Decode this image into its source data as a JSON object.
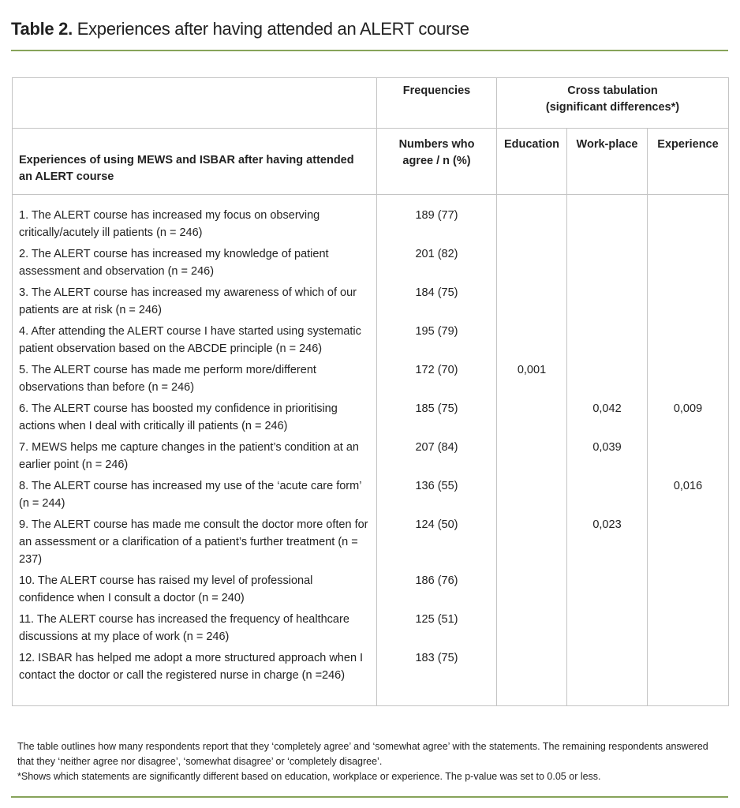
{
  "title": {
    "bold": "Table 2.",
    "text": " Experiences after having attended an ALERT course"
  },
  "header": {
    "frequencies": "Frequencies",
    "cross_tabulation": "Cross tabulation (significant differences*)",
    "statement_col": "Experiences of using MEWS and ISBAR after having attended an ALERT course",
    "numbers_col": "Numbers who agree / n (%)",
    "education": "Education",
    "workplace": "Work-place",
    "experience": "Experience"
  },
  "rows": [
    {
      "statement": "1. The ALERT course has increased my focus on observing critically/acutely ill patients (n = 246)",
      "freq": "189 (77)",
      "education": "",
      "workplace": "",
      "experience": ""
    },
    {
      "statement": "2. The ALERT course has increased my knowledge of patient assessment and observation (n = 246)",
      "freq": "201 (82)",
      "education": "",
      "workplace": "",
      "experience": ""
    },
    {
      "statement": "3. The ALERT course has increased my awareness of which of our patients are at risk (n = 246)",
      "freq": "184 (75)",
      "education": "",
      "workplace": "",
      "experience": ""
    },
    {
      "statement": "4. After attending the ALERT course I have started using systematic patient observation based on the ABCDE principle (n = 246)",
      "freq": "195 (79)",
      "education": "",
      "workplace": "",
      "experience": ""
    },
    {
      "statement": "5. The ALERT course has made me perform more/different observations than before (n = 246)",
      "freq": "172 (70)",
      "education": "0,001",
      "workplace": "",
      "experience": ""
    },
    {
      "statement": "6. The ALERT course has boosted my confidence in prioritising actions when I deal with critically ill patients (n = 246)",
      "freq": "185 (75)",
      "education": "",
      "workplace": "0,042",
      "experience": "0,009"
    },
    {
      "statement": "7. MEWS helps me capture changes in the patient’s condition at an earlier point (n = 246)",
      "freq": "207 (84)",
      "education": "",
      "workplace": "0,039",
      "experience": ""
    },
    {
      "statement": "8. The ALERT course has increased my use of the ‘acute care form’ (n = 244)",
      "freq": "136 (55)",
      "education": "",
      "workplace": "",
      "experience": "0,016"
    },
    {
      "statement": "9. The ALERT course has made me consult the doctor more often for an assessment or a clarification of a patient’s further treatment (n = 237)",
      "freq": "124 (50)",
      "education": "",
      "workplace": "0,023",
      "experience": ""
    },
    {
      "statement": "10. The ALERT course has raised my level of professional confidence when I consult a doctor (n = 240)",
      "freq": "186 (76)",
      "education": "",
      "workplace": "",
      "experience": ""
    },
    {
      "statement": "11. The ALERT course has increased the frequency of healthcare discussions at my place of work (n = 246)",
      "freq": "125 (51)",
      "education": "",
      "workplace": "",
      "experience": ""
    },
    {
      "statement": "12. ISBAR has helped me adopt a more structured approach when I contact the doctor or call the registered nurse in charge (n =246)",
      "freq": "183 (75)",
      "education": "",
      "workplace": "",
      "experience": ""
    }
  ],
  "notes": {
    "line1": "The table outlines how many respondents report that they ‘completely agree’ and ‘somewhat agree’ with the statements. The remaining respondents answered that they ‘neither agree nor disagree’, ‘somewhat disagree’ or ‘completely disagree’.",
    "line2": "*Shows which statements are significantly different based on education, workplace or experience. The p-value was set to 0.05 or less."
  },
  "colors": {
    "accent_rule": "#87a35a",
    "grid": "#c4c4c4"
  }
}
